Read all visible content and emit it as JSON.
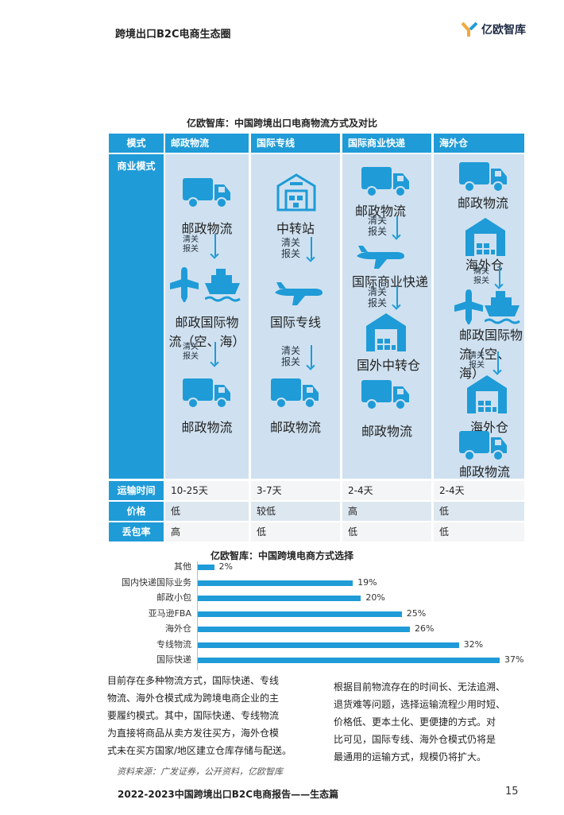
{
  "header": {
    "title": "跨境出口B2C电商生态圈",
    "logo_text": "亿欧智库"
  },
  "table": {
    "title": "亿欧智库：中国跨境出口电商物流方式及对比",
    "columns": [
      "模式",
      "邮政物流",
      "国际专线",
      "国际商业快递",
      "海外仓"
    ],
    "business_label": "商业模式",
    "flows": {
      "postal": {
        "l1": "邮政物流",
        "c1a": "清关",
        "c1b": "报关",
        "l2a": "邮政国际物",
        "l2b": "流（空、海）",
        "c2a": "清关",
        "c2b": "报关",
        "l3": "邮政物流"
      },
      "line": {
        "l1": "中转站",
        "c1a": "清关",
        "c1b": "报关",
        "l2": "国际专线",
        "c2a": "清关",
        "c2b": "报关",
        "l3": "邮政物流"
      },
      "express": {
        "l1": "邮政物流",
        "c1a": "清关",
        "c1b": "报关",
        "l2": "国际商业快递",
        "c2a": "清关",
        "c2b": "报关",
        "l3": "国外中转仓",
        "l4": "邮政物流"
      },
      "overseas": {
        "l1": "邮政物流",
        "l2": "海外仓",
        "c1a": "清关",
        "c1b": "报关",
        "l3a": "邮政国际物",
        "l3b": "流（空、海）",
        "c2a": "清关",
        "c2b": "报关",
        "l4": "海外仓",
        "l5": "邮政物流"
      }
    },
    "rows": [
      {
        "label": "运输时间",
        "values": [
          "10-25天",
          "3-7天",
          "2-4天",
          "2-4天"
        ]
      },
      {
        "label": "价格",
        "values": [
          "低",
          "较低",
          "高",
          "低"
        ]
      },
      {
        "label": "丢包率",
        "values": [
          "高",
          "低",
          "低",
          "低"
        ]
      }
    ]
  },
  "chart_data": {
    "type": "bar",
    "orientation": "horizontal",
    "title": "亿欧智库：中国跨境电商方式选择",
    "categories": [
      "其他",
      "国内快递国际业务",
      "邮政小包",
      "亚马逊FBA",
      "海外仓",
      "专线物流",
      "国际快递"
    ],
    "values": [
      2,
      19,
      20,
      25,
      26,
      32,
      37
    ],
    "value_labels": [
      "2%",
      "19%",
      "20%",
      "25%",
      "26%",
      "32%",
      "37%"
    ],
    "unit": "%",
    "grid": false,
    "color": "#1f9bd7"
  },
  "text": {
    "left_lines": [
      "目前存在多种物流方式，国际快递、专线",
      "物流、海外仓模式成为跨境电商企业的主",
      "要履约模式。其中，国际快递、专线物流",
      "为直接将商品从卖方发往买方，海外仓模",
      "式未在买方国家/地区建立仓库存储与配送。"
    ],
    "right_lines": [
      "根据目前物流存在的时间长、无法追溯、",
      "退货难等问题，选择运输流程少用时短、",
      "价格低、更本土化、更便捷的方式。对",
      "比可见，国际专线、海外仓模式仍将是",
      "最通用的运输方式，规模仍将扩大。"
    ],
    "source": "资料来源：广发证券，公开资料，亿欧智库"
  },
  "footer": {
    "title": "2022-2023中国跨境出口B2C电商报告——生态篇",
    "page": "15"
  },
  "colors": {
    "accent": "#1f9bd7",
    "panel": "#cfe1f0",
    "row_alt": "#dde7f0"
  }
}
